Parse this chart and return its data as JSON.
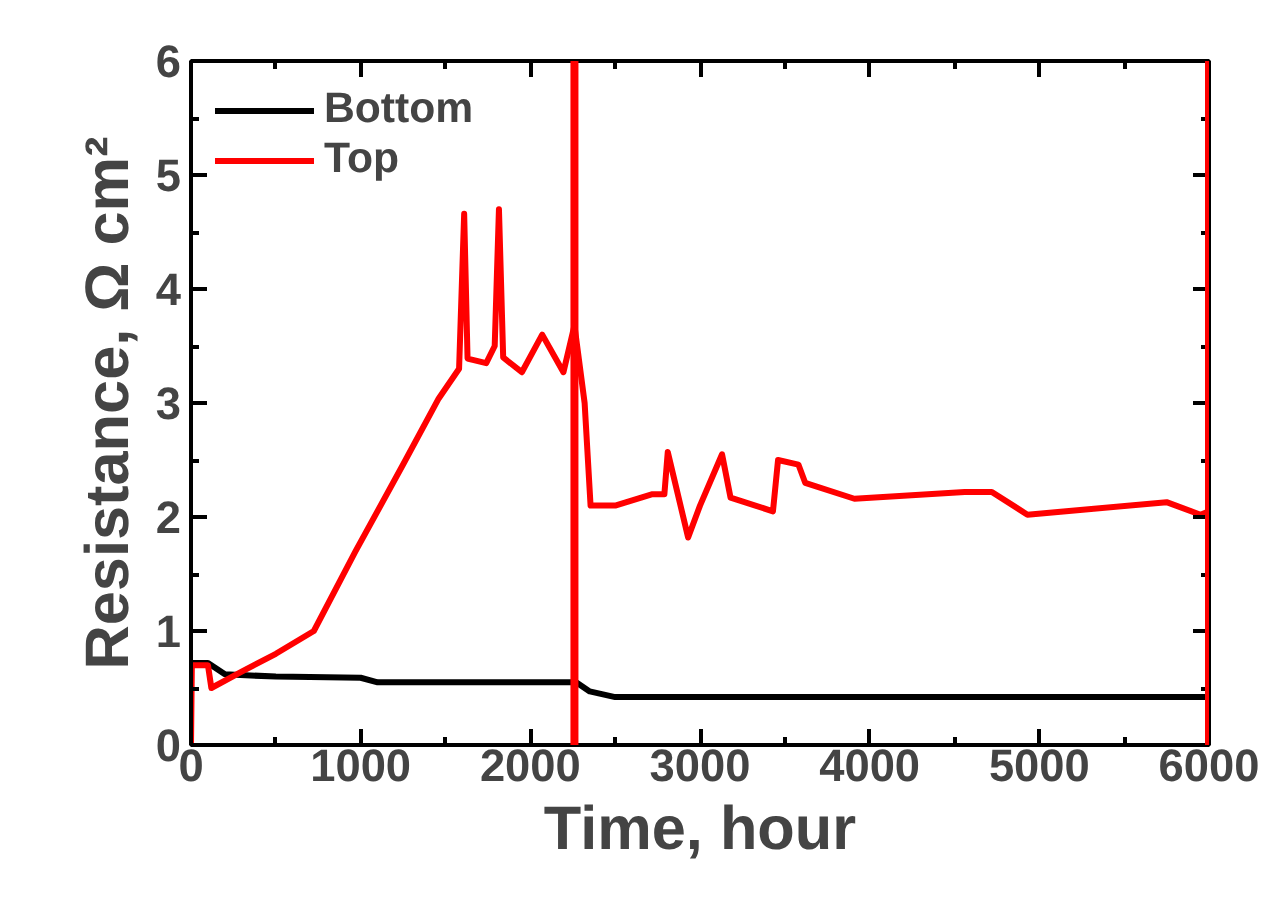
{
  "chart_data": {
    "type": "line",
    "xlabel": "Time, hour",
    "ylabel": "Resistance, Ω cm²",
    "xlim": [
      0,
      6000
    ],
    "ylim": [
      0,
      6
    ],
    "xticks": [
      0,
      {
        "value": 500,
        "label": null
      },
      1000,
      {
        "value": 1500,
        "label": null
      },
      2000,
      {
        "value": 2500,
        "label": null
      },
      3000,
      {
        "value": 3500,
        "label": null
      },
      4000,
      {
        "value": 4500,
        "label": null
      },
      5000,
      {
        "value": 5500,
        "label": null
      },
      6000
    ],
    "yticks": [
      0,
      {
        "value": 0.5,
        "label": null
      },
      1,
      {
        "value": 1.5,
        "label": null
      },
      2,
      {
        "value": 2.5,
        "label": null
      },
      3,
      {
        "value": 3.5,
        "label": null
      },
      4,
      {
        "value": 4.5,
        "label": null
      },
      5,
      {
        "value": 5.5,
        "label": null
      },
      6
    ],
    "grid": false,
    "legend": "top left",
    "line_style": "solid",
    "marker": "none",
    "series": [
      {
        "name": "Bottom",
        "color": "#000000",
        "x": [
          0,
          100,
          200,
          500,
          1000,
          1100,
          1500,
          2000,
          2270,
          2350,
          2500,
          3000,
          4000,
          5000,
          6000
        ],
        "values": [
          0.72,
          0.72,
          0.62,
          0.6,
          0.59,
          0.55,
          0.55,
          0.55,
          0.55,
          0.47,
          0.42,
          0.42,
          0.42,
          0.42,
          0.42
        ]
      },
      {
        "name": "Top",
        "color": "#ff0000",
        "x": [
          0,
          5,
          100,
          120,
          307,
          500,
          724,
          970,
          1250,
          1460,
          1580,
          1610,
          1630,
          1740,
          1790,
          1815,
          1840,
          1950,
          2070,
          2195,
          2260,
          2320,
          2355,
          2500,
          2720,
          2790,
          2810,
          2930,
          3000,
          3130,
          3180,
          3430,
          3460,
          3580,
          3620,
          3910,
          4560,
          4720,
          4930,
          5750,
          5950,
          6000
        ],
        "values": [
          0,
          0.7,
          0.7,
          0.5,
          0.65,
          0.8,
          1.0,
          1.7,
          2.46,
          3.04,
          3.3,
          4.66,
          3.39,
          3.35,
          3.5,
          4.7,
          3.4,
          3.27,
          3.6,
          3.27,
          3.68,
          3.0,
          2.1,
          2.1,
          2.2,
          2.2,
          2.57,
          1.82,
          2.1,
          2.55,
          2.17,
          2.05,
          2.5,
          2.46,
          2.3,
          2.16,
          2.22,
          2.22,
          2.02,
          2.13,
          2.02,
          2.05
        ]
      }
    ],
    "ref_lines": [
      {
        "axis": "x",
        "value": 2260,
        "color": "#ff0000"
      },
      {
        "axis": "x",
        "value": 6000,
        "color": "#ff0000"
      }
    ]
  }
}
